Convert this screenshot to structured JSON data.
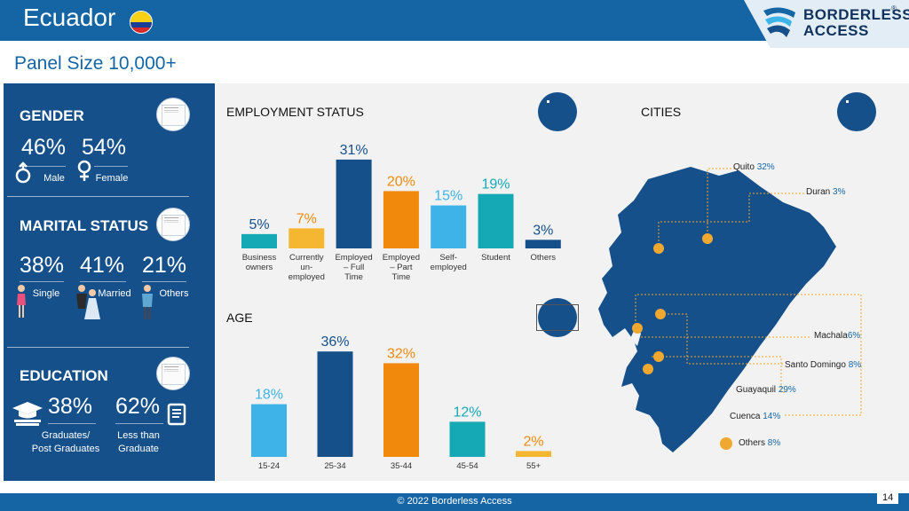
{
  "header": {
    "title": "Ecuador",
    "flag_icon": "ecuador-flag-icon",
    "logo_line1": "BORDERLESS",
    "logo_line2": "ACCESS",
    "logo_reg": "®"
  },
  "panel_size": "Panel Size 10,000+",
  "gender": {
    "title": "GENDER",
    "items": [
      {
        "pct": "46%",
        "label": "Male",
        "icon": "male-symbol-icon"
      },
      {
        "pct": "54%",
        "label": "Female",
        "icon": "female-symbol-icon"
      }
    ]
  },
  "marital": {
    "title": "MARITAL STATUS",
    "items": [
      {
        "pct": "38%",
        "label": "Single",
        "icon": "single-woman-icon"
      },
      {
        "pct": "41%",
        "label": "Married",
        "icon": "married-couple-icon"
      },
      {
        "pct": "21%",
        "label": "Others",
        "icon": "man-icon"
      }
    ]
  },
  "education": {
    "title": "EDUCATION",
    "items": [
      {
        "pct": "38%",
        "label_line1": "Graduates/",
        "label_line2": "Post Graduates",
        "icon": "graduation-cap-icon"
      },
      {
        "pct": "62%",
        "label_line1": "Less than",
        "label_line2": "Graduate",
        "icon": "book-icon"
      }
    ]
  },
  "colors": {
    "dark_blue": "#15508a",
    "brand_blue": "#1565a5",
    "orange": "#f0890c",
    "light_blue": "#3db3e8",
    "teal": "#14a9b4",
    "yellow": "#f5b731"
  },
  "chart_data": [
    {
      "type": "bar",
      "title": "EMPLOYMENT STATUS",
      "categories": [
        [
          "Business",
          "owners"
        ],
        [
          "Currently",
          "un-",
          "employed"
        ],
        [
          "Employed",
          "– Full",
          "Time"
        ],
        [
          "Employed",
          "– Part",
          "Time"
        ],
        [
          "Self-",
          "employed"
        ],
        [
          "Student"
        ],
        [
          "Others"
        ]
      ],
      "values": [
        5,
        7,
        31,
        20,
        15,
        19,
        3
      ],
      "labels": [
        "5%",
        "7%",
        "31%",
        "20%",
        "15%",
        "19%",
        "3%"
      ],
      "colors": [
        "#14a9b4",
        "#f5b731",
        "#15508a",
        "#f0890c",
        "#3db3e8",
        "#14a9b4",
        "#15508a"
      ],
      "label_colors": [
        "#15508a",
        "#f0890c",
        "#15508a",
        "#f0890c",
        "#3db3e8",
        "#14a9b4",
        "#15508a"
      ]
    },
    {
      "type": "bar",
      "title": "AGE",
      "categories": [
        "15-24",
        "25-34",
        "35-44",
        "45-54",
        "55+"
      ],
      "values": [
        18,
        36,
        32,
        12,
        2
      ],
      "labels": [
        "18%",
        "36%",
        "32%",
        "12%",
        "2%"
      ],
      "colors": [
        "#3db3e8",
        "#15508a",
        "#f0890c",
        "#14a9b4",
        "#f5b731"
      ],
      "label_colors": [
        "#3db3e8",
        "#15508a",
        "#f0890c",
        "#14a9b4",
        "#f0890c"
      ]
    }
  ],
  "cities": {
    "title": "CITIES",
    "map_icon": "ecuador-map",
    "items": [
      {
        "name": "Quito",
        "pct": "32%"
      },
      {
        "name": "Duran",
        "pct": "3%"
      },
      {
        "name": "Machala",
        "pct": "6%"
      },
      {
        "name": "Santo Domingo",
        "pct": "8%"
      },
      {
        "name": "Guayaquil",
        "pct": "29%"
      },
      {
        "name": "Cuenca",
        "pct": "14%"
      },
      {
        "name": "Others",
        "pct": "8%"
      }
    ]
  },
  "footer": {
    "copyright": "© 2022 Borderless Access",
    "page": "14"
  }
}
